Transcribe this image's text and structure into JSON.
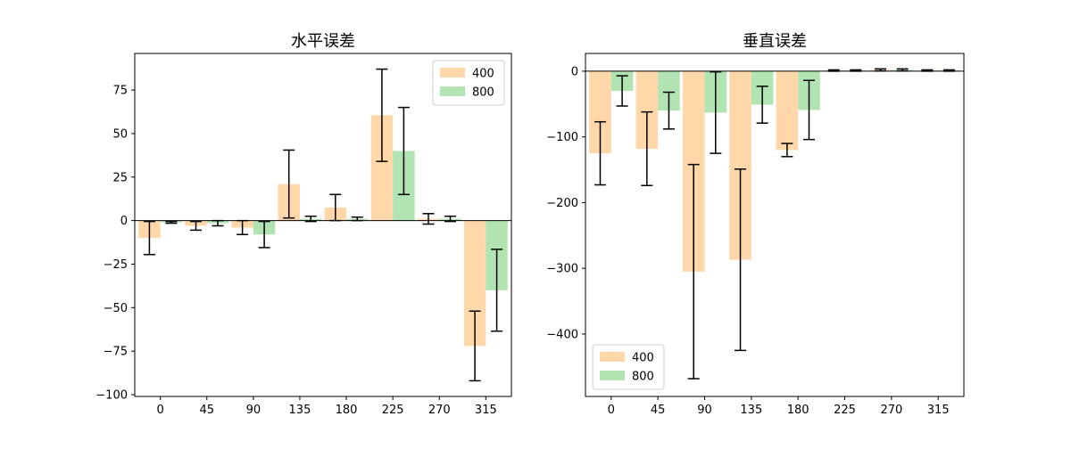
{
  "chart_data": [
    {
      "type": "bar",
      "title": "水平误差",
      "categories": [
        "0",
        "45",
        "90",
        "135",
        "180",
        "225",
        "270",
        "315"
      ],
      "ylim": [
        -101,
        96
      ],
      "yticks": [
        -100,
        -75,
        -50,
        -25,
        0,
        25,
        50,
        75
      ],
      "grid": false,
      "zero_line": true,
      "legend_position": "upper right",
      "series": [
        {
          "name": "400",
          "color": "#ffd7a8",
          "values": [
            -10,
            -3,
            -4,
            21,
            7.5,
            60.5,
            1,
            -72
          ],
          "errors": [
            9.5,
            2.5,
            4,
            19.5,
            7.5,
            26.5,
            3,
            20
          ]
        },
        {
          "name": "800",
          "color": "#b2e3b2",
          "values": [
            -1,
            -1.5,
            -8,
            1,
            1,
            40,
            1,
            -40
          ],
          "errors": [
            0.5,
            1.5,
            7.5,
            1.5,
            1,
            25,
            1.5,
            23.5
          ]
        }
      ]
    },
    {
      "type": "bar",
      "title": "垂直误差",
      "categories": [
        "0",
        "45",
        "90",
        "135",
        "180",
        "225",
        "270",
        "315"
      ],
      "ylim": [
        -495,
        27
      ],
      "yticks": [
        -400,
        -300,
        -200,
        -100,
        0
      ],
      "grid": false,
      "zero_line": true,
      "legend_position": "lower left",
      "series": [
        {
          "name": "400",
          "color": "#ffd7a8",
          "values": [
            -125,
            -118,
            -305,
            -287,
            -120,
            1,
            2,
            1
          ],
          "errors": [
            48,
            56,
            163,
            138,
            10,
            1,
            1.5,
            1
          ]
        },
        {
          "name": "800",
          "color": "#b2e3b2",
          "values": [
            -30,
            -60,
            -63,
            -51,
            -59,
            1,
            2,
            1
          ],
          "errors": [
            23,
            28,
            62,
            28,
            45,
            1,
            1.5,
            1
          ]
        }
      ]
    }
  ]
}
